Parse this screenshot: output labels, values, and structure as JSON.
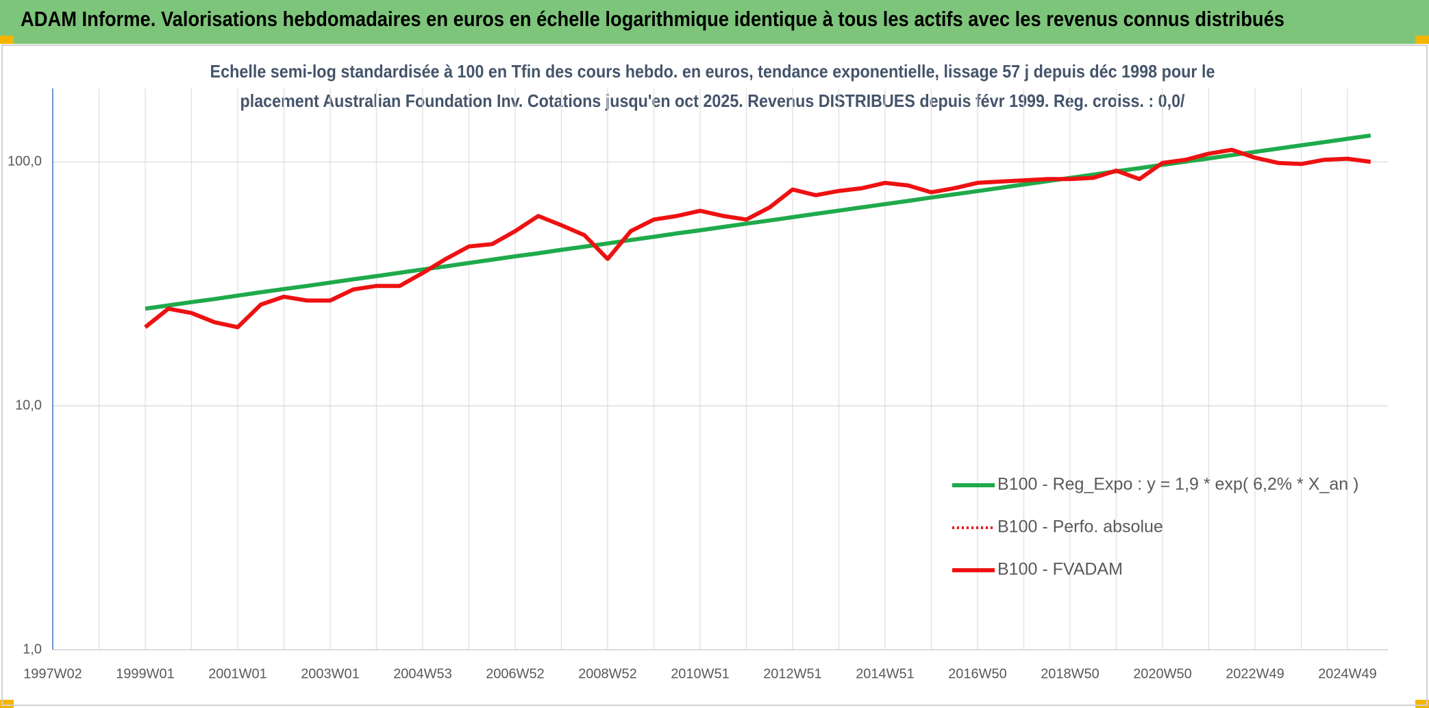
{
  "chart_data": {
    "type": "line",
    "title": "ADAM Informe. Valorisations hebdomadaires en euros en échelle logarithmique identique à tous les actifs avec les revenus connus distribués",
    "subtitle": [
      "Echelle semi-log standardisée à 100 en Tfin des cours hebdo. en euros, tendance exponentielle, lissage 57 j depuis déc 1998 pour le",
      "placement Australian Foundation Inv. Cotations jusqu'en oct 2025. Revenus DISTRIBUES depuis févr 1999. Reg. croiss. : 0,0/"
    ],
    "log_scale": true,
    "grid": true,
    "legend": "lower right",
    "categories": [
      "1997W02",
      null,
      null,
      null,
      "1999W01",
      null,
      null,
      null,
      "2001W01",
      null,
      null,
      null,
      "2003W01",
      null,
      null,
      null,
      "2004W53",
      null,
      null,
      null,
      "2006W52",
      null,
      null,
      null,
      "2008W52",
      null,
      null,
      null,
      "2010W51",
      null,
      null,
      null,
      "2012W51",
      null,
      null,
      null,
      "2014W51",
      null,
      null,
      null,
      "2016W50",
      null,
      null,
      null,
      "2018W50",
      null,
      null,
      null,
      "2020W50",
      null,
      null,
      null,
      "2022W49",
      null,
      null,
      null,
      "2024W49",
      null
    ],
    "ylim": [
      1,
      200
    ],
    "yticks": [
      {
        "value": 1,
        "label": "1,0"
      },
      {
        "value": 10,
        "label": "10,0"
      },
      {
        "value": 100,
        "label": "100,0"
      }
    ],
    "series": [
      {
        "name": "B100 - Reg_Expo : y = 1,9 * exp( 6,2% *  X_an )",
        "color": "#1faa4b",
        "style": "solid",
        "values": [
          null,
          null,
          null,
          null,
          25.0,
          25.8,
          26.6,
          27.4,
          28.3,
          29.2,
          30.1,
          31.0,
          32.0,
          33.0,
          34.0,
          35.1,
          36.2,
          37.3,
          38.5,
          39.7,
          41.0,
          42.2,
          43.6,
          44.9,
          46.3,
          47.8,
          49.3,
          50.9,
          52.4,
          54.1,
          55.8,
          57.5,
          59.3,
          61.2,
          63.1,
          65.1,
          67.1,
          69.2,
          71.4,
          73.6,
          75.9,
          78.3,
          80.8,
          83.3,
          85.9,
          88.6,
          91.4,
          94.2,
          97.2,
          100.2,
          103.3,
          106.6,
          109.9,
          113.3,
          116.9,
          120.5,
          124.3,
          128.2
        ]
      },
      {
        "name": "B100 - Perfo. absolue",
        "color": "#ee1111",
        "style": "dotted",
        "values": [
          null,
          null,
          null,
          null,
          21,
          25,
          24,
          22,
          21,
          26,
          28,
          27,
          27,
          30,
          31,
          31,
          35,
          40,
          45,
          46,
          52,
          60,
          55,
          50,
          40,
          52,
          58,
          60,
          63,
          60,
          58,
          65,
          77,
          73,
          76,
          78,
          82,
          80,
          75,
          78,
          82,
          83,
          84,
          85,
          85,
          86,
          92,
          85,
          99,
          102,
          108,
          112,
          104,
          99,
          98,
          102,
          103,
          100
        ]
      },
      {
        "name": "B100 - FVADAM",
        "color": "#ee1111",
        "style": "solid",
        "values": [
          null,
          null,
          null,
          null,
          21,
          25,
          24,
          22,
          21,
          26,
          28,
          27,
          27,
          30,
          31,
          31,
          35,
          40,
          45,
          46,
          52,
          60,
          55,
          50,
          40,
          52,
          58,
          60,
          63,
          60,
          58,
          65,
          77,
          73,
          76,
          78,
          82,
          80,
          75,
          78,
          82,
          83,
          84,
          85,
          85,
          86,
          92,
          85,
          99,
          102,
          108,
          112,
          104,
          99,
          98,
          102,
          103,
          100
        ]
      }
    ]
  }
}
